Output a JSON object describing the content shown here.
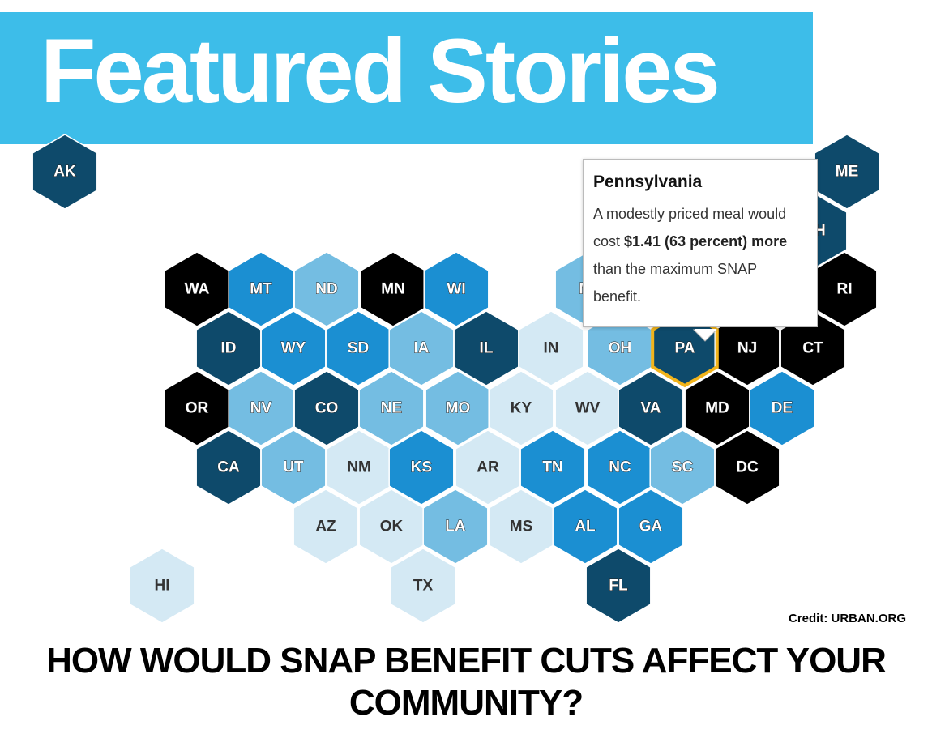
{
  "banner": {
    "title": "Featured Stories"
  },
  "map": {
    "tiles": [
      {
        "label": "AK",
        "color": "#0e4a6b"
      },
      {
        "label": "ME",
        "color": "#0e4a6b"
      },
      {
        "label": "NH",
        "color": "#0e4a6b"
      },
      {
        "label": "WA",
        "color": "#000000"
      },
      {
        "label": "MT",
        "color": "#1b8fd2"
      },
      {
        "label": "ND",
        "color": "#74bde2"
      },
      {
        "label": "MN",
        "color": "#000000"
      },
      {
        "label": "WI",
        "color": "#1b8fd2"
      },
      {
        "label": "MI",
        "color": "#74bde2"
      },
      {
        "label": "RI",
        "color": "#000000"
      },
      {
        "label": "ID",
        "color": "#0e4a6b"
      },
      {
        "label": "WY",
        "color": "#1b8fd2"
      },
      {
        "label": "SD",
        "color": "#1b8fd2"
      },
      {
        "label": "IA",
        "color": "#74bde2"
      },
      {
        "label": "IL",
        "color": "#0e4a6b"
      },
      {
        "label": "IN",
        "color": "#d4e9f4"
      },
      {
        "label": "OH",
        "color": "#74bde2"
      },
      {
        "label": "PA",
        "color": "#0e4a6b"
      },
      {
        "label": "NJ",
        "color": "#000000"
      },
      {
        "label": "CT",
        "color": "#000000"
      },
      {
        "label": "OR",
        "color": "#000000"
      },
      {
        "label": "NV",
        "color": "#74bde2"
      },
      {
        "label": "CO",
        "color": "#0e4a6b"
      },
      {
        "label": "NE",
        "color": "#74bde2"
      },
      {
        "label": "MO",
        "color": "#74bde2"
      },
      {
        "label": "KY",
        "color": "#d4e9f4"
      },
      {
        "label": "WV",
        "color": "#d4e9f4"
      },
      {
        "label": "VA",
        "color": "#0e4a6b"
      },
      {
        "label": "MD",
        "color": "#000000"
      },
      {
        "label": "DE",
        "color": "#1b8fd2"
      },
      {
        "label": "CA",
        "color": "#0e4a6b"
      },
      {
        "label": "UT",
        "color": "#74bde2"
      },
      {
        "label": "NM",
        "color": "#d4e9f4"
      },
      {
        "label": "KS",
        "color": "#1b8fd2"
      },
      {
        "label": "AR",
        "color": "#d4e9f4"
      },
      {
        "label": "TN",
        "color": "#1b8fd2"
      },
      {
        "label": "NC",
        "color": "#1b8fd2"
      },
      {
        "label": "SC",
        "color": "#74bde2"
      },
      {
        "label": "DC",
        "color": "#000000"
      },
      {
        "label": "AZ",
        "color": "#d4e9f4"
      },
      {
        "label": "OK",
        "color": "#d4e9f4"
      },
      {
        "label": "LA",
        "color": "#74bde2"
      },
      {
        "label": "MS",
        "color": "#d4e9f4"
      },
      {
        "label": "AL",
        "color": "#1b8fd2"
      },
      {
        "label": "GA",
        "color": "#1b8fd2"
      },
      {
        "label": "HI",
        "color": "#d4e9f4"
      },
      {
        "label": "TX",
        "color": "#d4e9f4"
      },
      {
        "label": "FL",
        "color": "#0e4a6b"
      }
    ],
    "highlight_color": "#f2b41b"
  },
  "tooltip": {
    "title": "Pennsylvania",
    "text_before": "A modestly priced meal would cost ",
    "text_bold": "$1.41 (63 percent) more",
    "text_after": " than the maximum SNAP benefit."
  },
  "credit": "Credit: URBAN.ORG",
  "heading": "HOW WOULD SNAP BENEFIT CUTS AFFECT YOUR COMMUNITY?"
}
